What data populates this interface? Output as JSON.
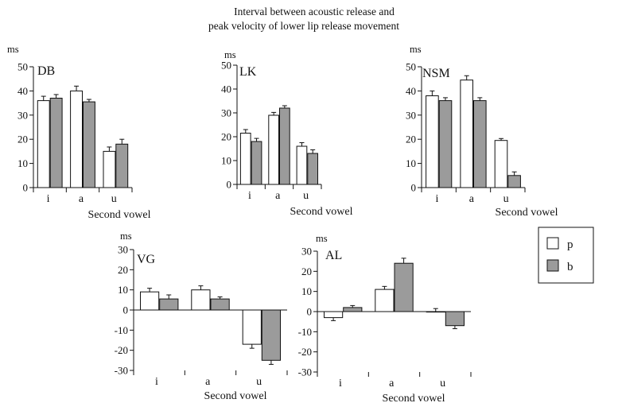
{
  "title": [
    "Interval between acoustic release and",
    "peak velocity of lower lip release movement"
  ],
  "colors": {
    "p": "#ffffff",
    "b": "#9b9b9b",
    "axis": "#111111"
  },
  "legend": {
    "placement": "right",
    "items": [
      {
        "key": "p",
        "label": "p"
      },
      {
        "key": "b",
        "label": "b"
      }
    ]
  },
  "chart_data": [
    {
      "type": "bar",
      "label": "DB",
      "ylabel": "ms",
      "xlabel": "Second vowel",
      "categories": [
        "i",
        "a",
        "u"
      ],
      "ylim": [
        0,
        50
      ],
      "yticks": [
        0,
        10,
        20,
        30,
        40,
        50
      ],
      "series": [
        {
          "name": "p",
          "values": [
            36,
            40,
            15
          ],
          "errors": [
            1.8,
            2,
            1.8
          ]
        },
        {
          "name": "b",
          "values": [
            37,
            35.5,
            18
          ],
          "errors": [
            1.5,
            1,
            2
          ]
        }
      ]
    },
    {
      "type": "bar",
      "label": "LK",
      "ylabel": "ms",
      "xlabel": "Second vowel",
      "categories": [
        "i",
        "a",
        "u"
      ],
      "ylim": [
        0,
        50
      ],
      "yticks": [
        0,
        10,
        20,
        30,
        40,
        50
      ],
      "series": [
        {
          "name": "p",
          "values": [
            21.5,
            29,
            16
          ],
          "errors": [
            1.5,
            1.2,
            1.5
          ]
        },
        {
          "name": "b",
          "values": [
            18,
            32,
            13
          ],
          "errors": [
            1.3,
            1,
            1.5
          ]
        }
      ]
    },
    {
      "type": "bar",
      "label": "NSM",
      "ylabel": "ms",
      "xlabel": "Second vowel",
      "categories": [
        "i",
        "a",
        "u"
      ],
      "ylim": [
        0,
        50
      ],
      "yticks": [
        0,
        10,
        20,
        30,
        40,
        50
      ],
      "series": [
        {
          "name": "p",
          "values": [
            38,
            44.5,
            19.5
          ],
          "errors": [
            2,
            1.8,
            0.8
          ]
        },
        {
          "name": "b",
          "values": [
            36,
            36,
            5
          ],
          "errors": [
            1.2,
            1.2,
            1.5
          ]
        }
      ]
    },
    {
      "type": "bar",
      "label": "VG",
      "ylabel": "ms",
      "xlabel": "Second vowel",
      "categories": [
        "i",
        "a",
        "u"
      ],
      "ylim": [
        -30,
        30
      ],
      "yticks": [
        -30,
        -20,
        -10,
        0,
        10,
        20,
        30
      ],
      "series": [
        {
          "name": "p",
          "values": [
            9,
            10,
            -17
          ],
          "errors": [
            1.8,
            2,
            2
          ]
        },
        {
          "name": "b",
          "values": [
            5.5,
            5.5,
            -25
          ],
          "errors": [
            2,
            1,
            2
          ]
        }
      ]
    },
    {
      "type": "bar",
      "label": "AL",
      "ylabel": "ms",
      "xlabel": "Second vowel",
      "categories": [
        "i",
        "a",
        "u"
      ],
      "ylim": [
        -30,
        30
      ],
      "yticks": [
        -30,
        -20,
        -10,
        0,
        10,
        20,
        30
      ],
      "series": [
        {
          "name": "p",
          "values": [
            -3,
            11,
            0
          ],
          "errors": [
            1.5,
            1.5,
            1.5
          ]
        },
        {
          "name": "b",
          "values": [
            2,
            24,
            -7
          ],
          "errors": [
            1,
            2.5,
            1.5
          ]
        }
      ]
    }
  ]
}
